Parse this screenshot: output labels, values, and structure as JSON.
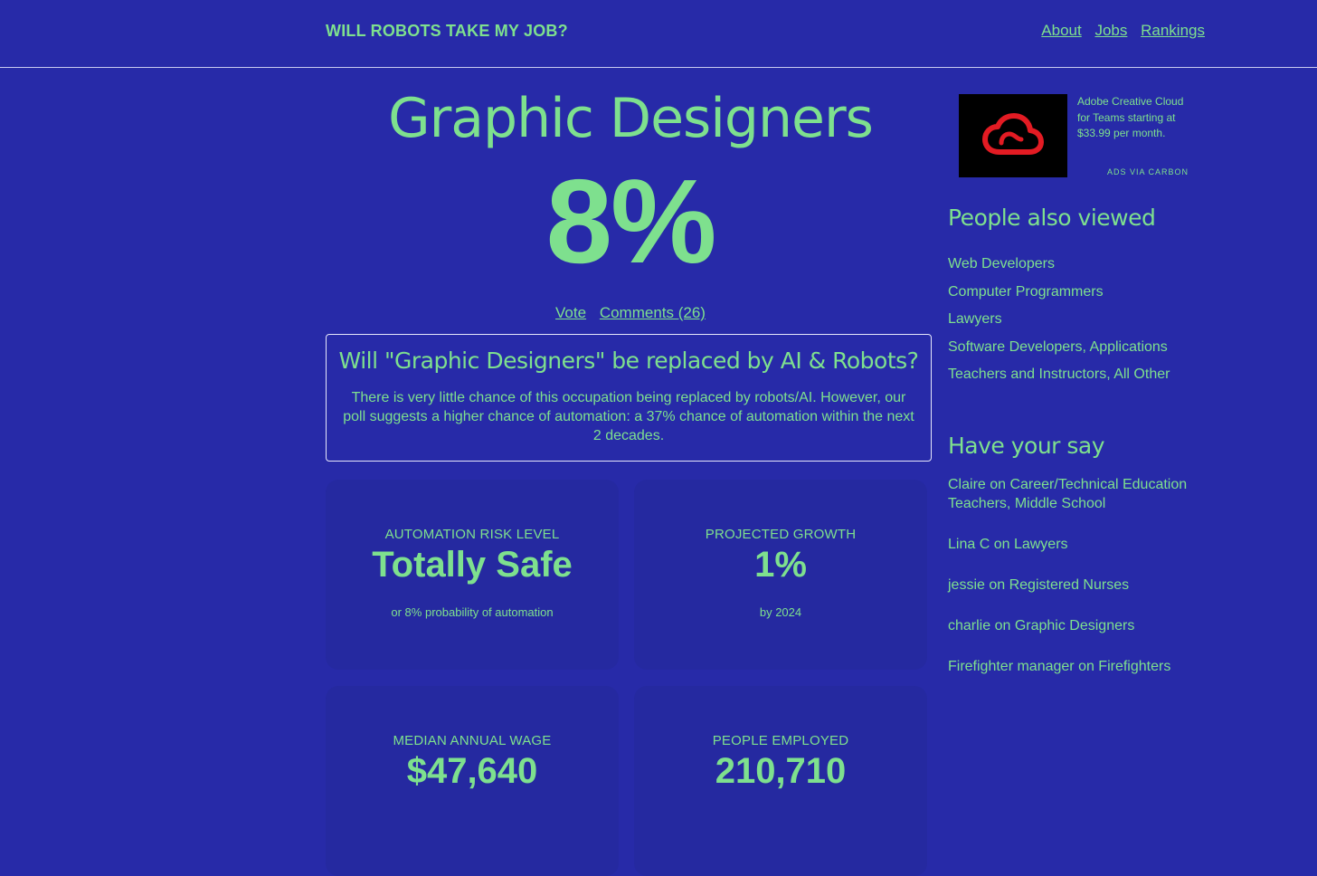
{
  "header": {
    "brand": "WILL ROBOTS TAKE MY JOB?",
    "nav": [
      "About",
      "Jobs",
      "Rankings"
    ]
  },
  "job": {
    "title": "Graphic Designers",
    "percent": "8%",
    "vote_label": "Vote",
    "comments_label": "Comments (26)"
  },
  "summary": {
    "heading": "Will \"Graphic Designers\" be replaced by AI & Robots?",
    "body": "There is very little chance of this occupation being replaced by robots/AI. However, our poll suggests a higher chance of automation: a 37% chance of automation within the next 2 decades."
  },
  "stats": [
    {
      "label": "AUTOMATION RISK LEVEL",
      "value": "Totally Safe",
      "sub": "or 8% probability of automation"
    },
    {
      "label": "PROJECTED GROWTH",
      "value": "1%",
      "sub": "by 2024"
    },
    {
      "label": "MEDIAN ANNUAL WAGE",
      "value": "$47,640",
      "sub": ""
    },
    {
      "label": "PEOPLE EMPLOYED",
      "value": "210,710",
      "sub": ""
    }
  ],
  "ad": {
    "text": "Adobe Creative Cloud for Teams starting at $33.99 per month.",
    "via": "ADS VIA CARBON",
    "logo_icon": "adobe-creative-cloud-icon",
    "logo_color": "#e31b23"
  },
  "also_viewed": {
    "heading": "People also viewed",
    "items": [
      "Web Developers",
      "Computer Programmers",
      "Lawyers",
      "Software Developers, Applications",
      "Teachers and Instructors, All Other"
    ]
  },
  "have_your_say": {
    "heading": "Have your say",
    "items": [
      "Claire on Career/Technical Education Teachers, Middle School",
      "Lina C on Lawyers",
      "jessie on Registered Nurses",
      "charlie on Graphic Designers",
      "Firefighter manager on Firefighters"
    ]
  },
  "colors": {
    "background": "#272aa8",
    "accent": "#7ee08e",
    "card": "#2529a0"
  }
}
